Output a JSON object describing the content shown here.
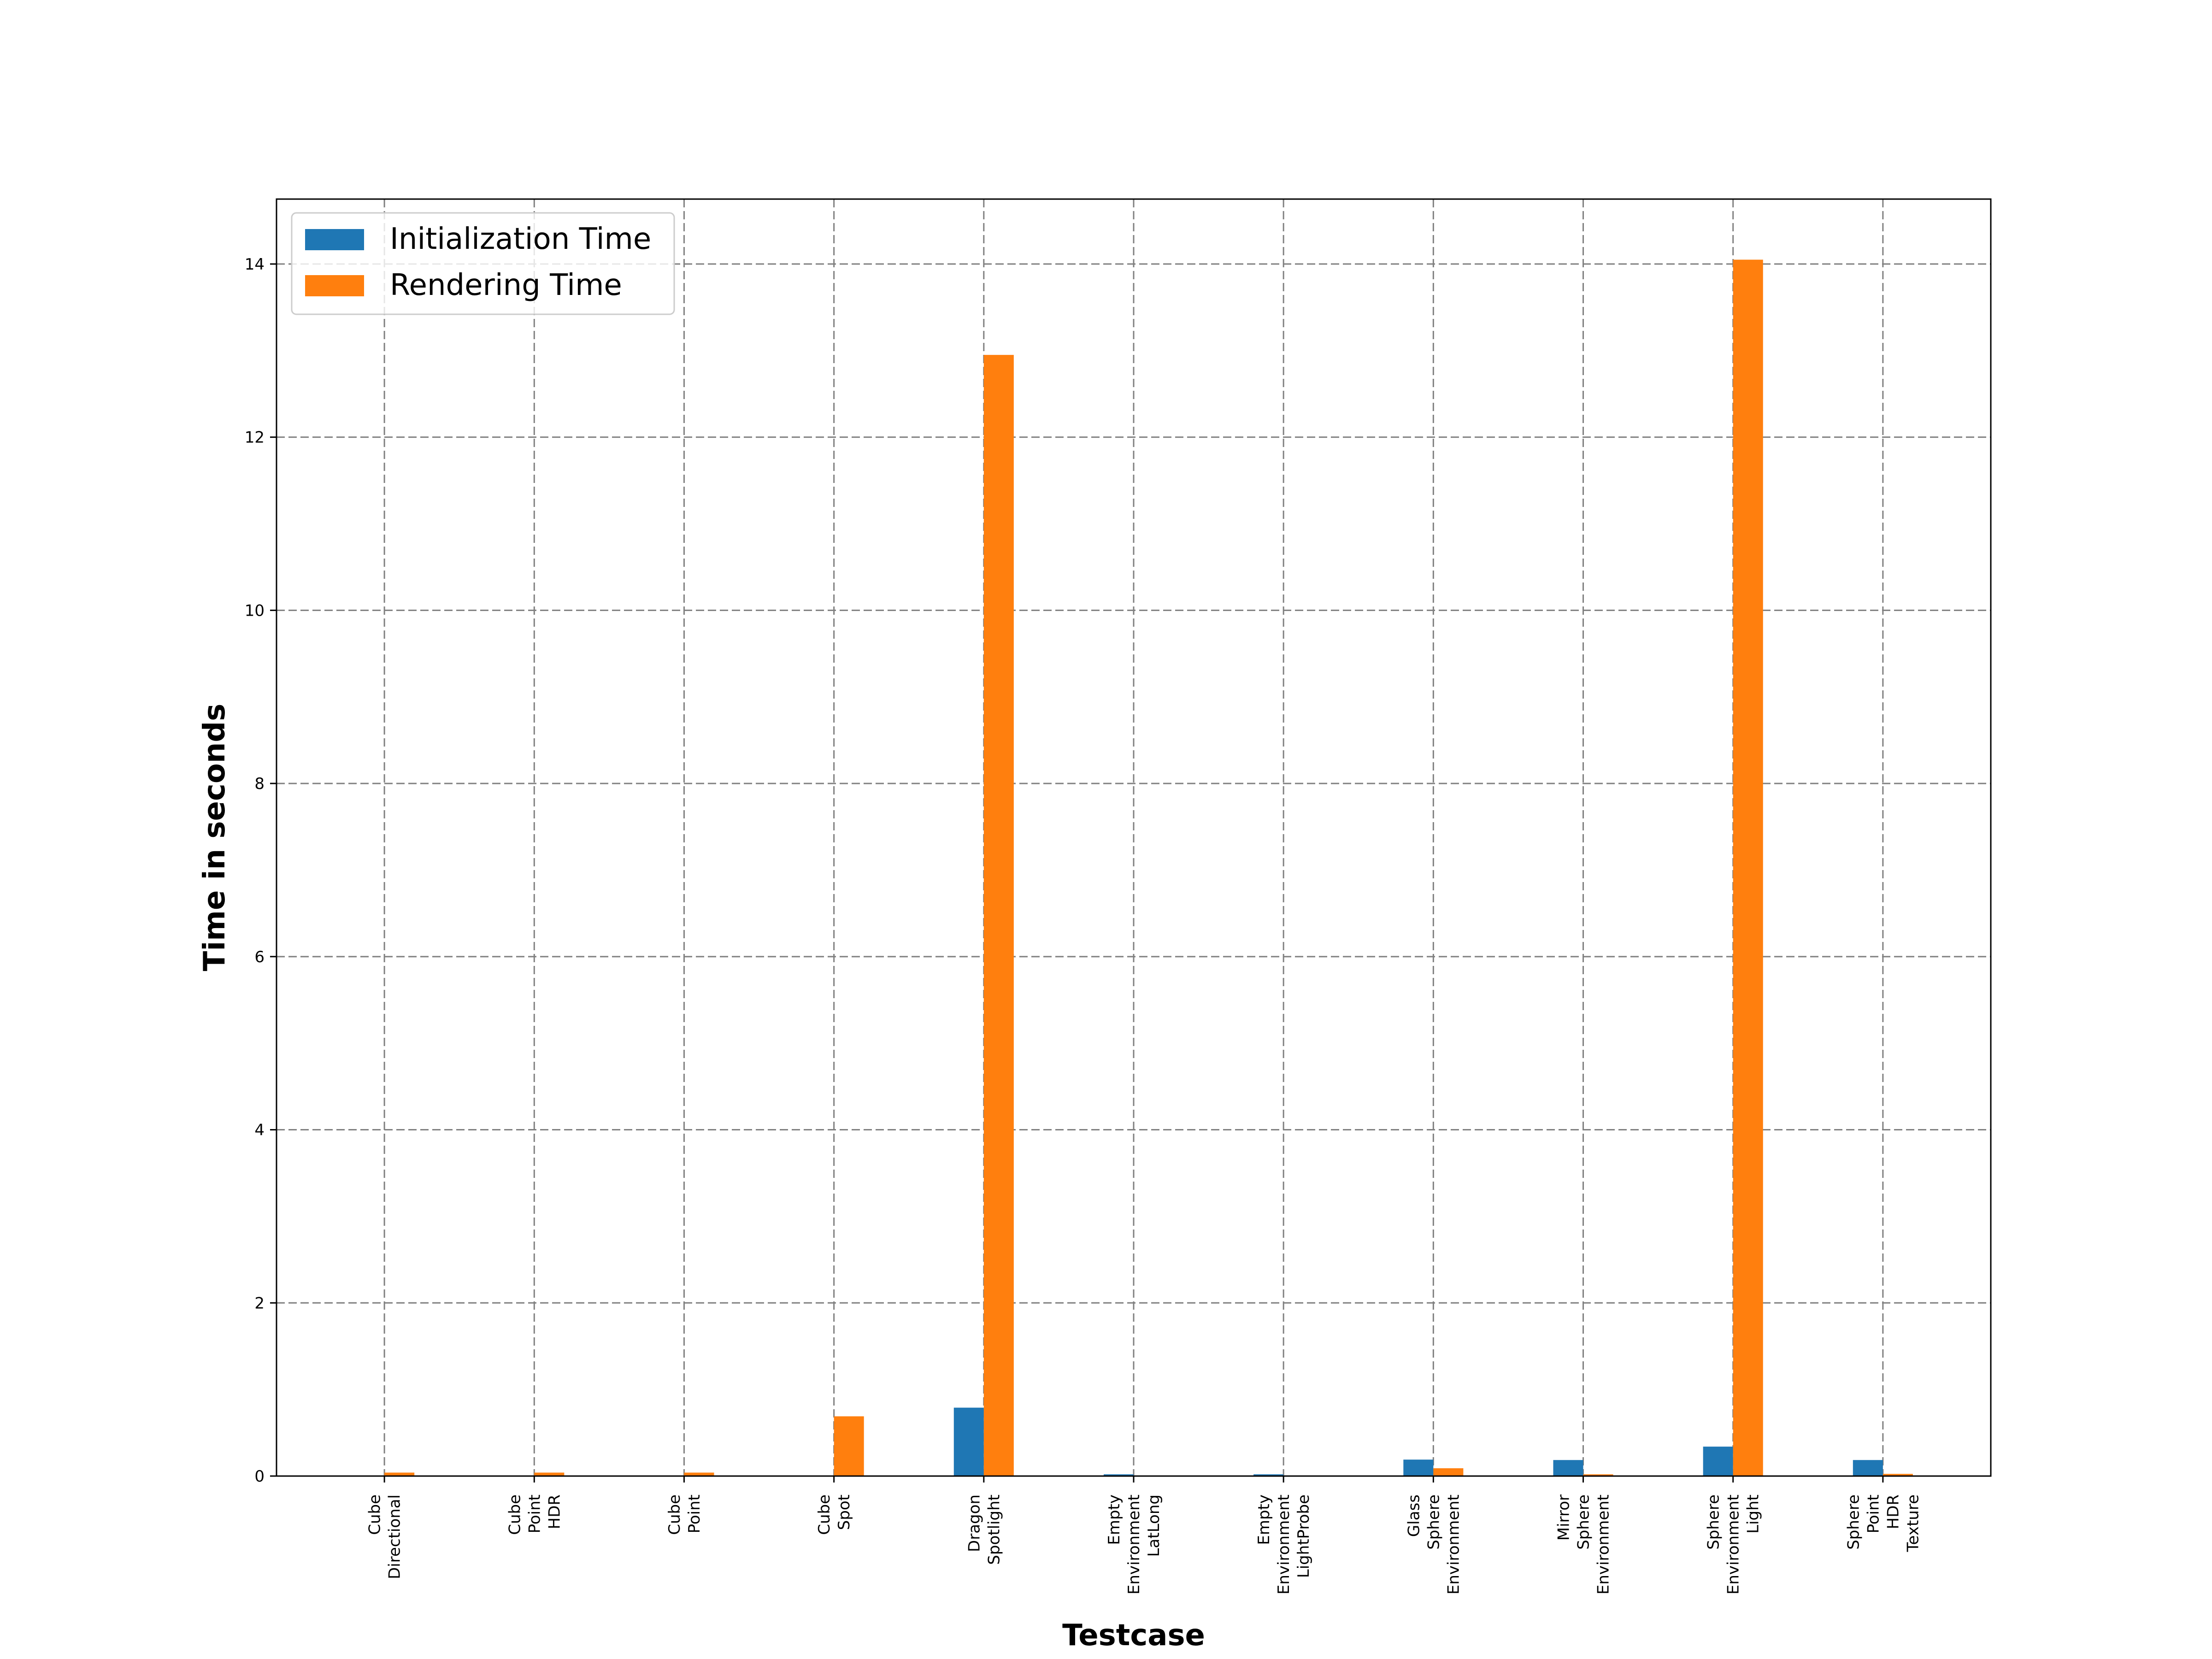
{
  "chart_data": {
    "type": "bar",
    "title": "",
    "xlabel": "Testcase",
    "ylabel": "Time in seconds",
    "categories": [
      [
        "Cube",
        "Directional"
      ],
      [
        "Cube",
        "Point",
        "HDR"
      ],
      [
        "Cube",
        "Point"
      ],
      [
        "Cube",
        "Spot"
      ],
      [
        "Dragon",
        "Spotlight"
      ],
      [
        "Empty",
        "Environment",
        "LatLong"
      ],
      [
        "Empty",
        "Environment",
        "LightProbe"
      ],
      [
        "Glass",
        "Sphere",
        "Environment"
      ],
      [
        "Mirror",
        "Sphere",
        "Environment"
      ],
      [
        "Sphere",
        "Environment",
        "Light"
      ],
      [
        "Sphere",
        "Point",
        "HDR",
        "Texture"
      ]
    ],
    "series": [
      {
        "name": "Initialization Time",
        "color": "#1f77b4",
        "values": [
          0.0,
          0.0,
          0.0,
          0.0,
          0.79,
          0.02,
          0.02,
          0.19,
          0.185,
          0.34,
          0.185
        ]
      },
      {
        "name": "Rendering Time",
        "color": "#ff7f0e",
        "values": [
          0.04,
          0.04,
          0.04,
          0.69,
          12.95,
          0.005,
          0.005,
          0.09,
          0.02,
          14.05,
          0.025
        ]
      }
    ],
    "ylim": [
      0,
      14.75
    ],
    "yticks": [
      0,
      2,
      4,
      6,
      8,
      10,
      12,
      14
    ],
    "grid": true,
    "grid_style": "dashed",
    "legend_position": "top-left"
  }
}
